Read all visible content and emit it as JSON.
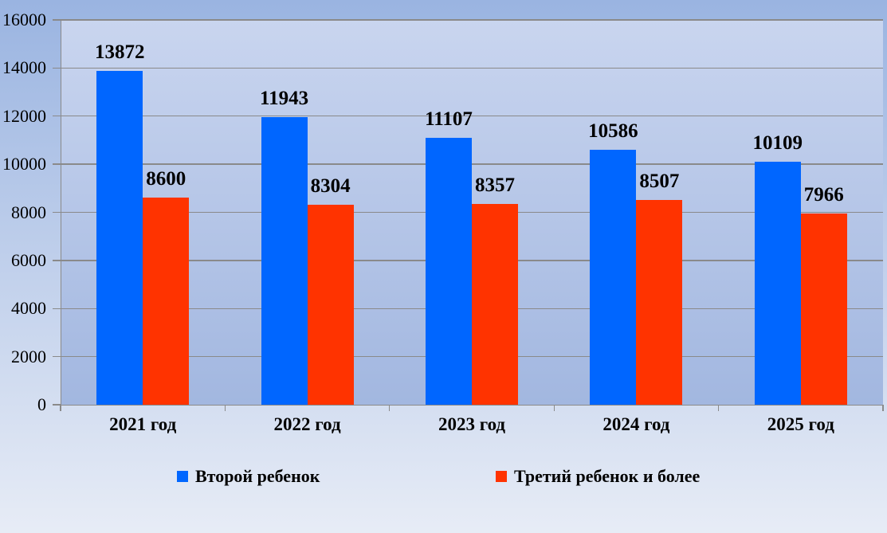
{
  "chart_data": {
    "type": "bar",
    "categories": [
      "2021 год",
      "2022 год",
      "2023 год",
      "2024 год",
      "2025 год"
    ],
    "series": [
      {
        "name": "Второй ребенок",
        "color": "#0066FF",
        "values": [
          13872,
          11943,
          11107,
          10586,
          10109
        ]
      },
      {
        "name": "Третий ребенок и более",
        "color": "#FF3300",
        "values": [
          8600,
          8304,
          8357,
          8507,
          7966
        ]
      }
    ],
    "title": "",
    "xlabel": "",
    "ylabel": "",
    "ylim": [
      0,
      16000
    ],
    "ytick_step": 2000,
    "ytick_labels": [
      "0",
      "2000",
      "4000",
      "6000",
      "8000",
      "10000",
      "12000",
      "14000",
      "16000"
    ],
    "grid": true,
    "legend_position": "bottom",
    "data_labels": true
  },
  "colors": {
    "page_background_top": "#9AB4E1",
    "page_background_bottom": "#E7ECF6",
    "plot_background_top": "#C9D5EF",
    "plot_background_bottom": "#A2B7E0",
    "gridline": "#8A8A8A",
    "axis": "#8A8A8A",
    "text": "#000000",
    "series_1": "#0066FF",
    "series_2": "#FF3300"
  }
}
